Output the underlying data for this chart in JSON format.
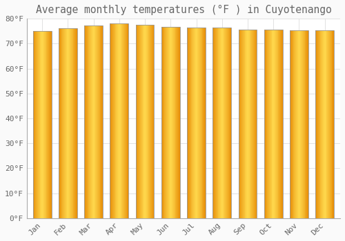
{
  "title": "Average monthly temperatures (°F ) in Cuyotenango",
  "months": [
    "Jan",
    "Feb",
    "Mar",
    "Apr",
    "May",
    "Jun",
    "Jul",
    "Aug",
    "Sep",
    "Oct",
    "Nov",
    "Dec"
  ],
  "values": [
    75.2,
    76.3,
    77.2,
    78.1,
    77.7,
    76.8,
    76.5,
    76.6,
    75.7,
    75.6,
    75.5,
    75.5
  ],
  "bar_color_center": "#FFD84D",
  "bar_color_edge": "#E8900A",
  "bar_border_color": "#999999",
  "background_color": "#FAFAFA",
  "plot_bg_color": "#FFFFFF",
  "grid_color": "#DDDDDD",
  "text_color": "#666666",
  "title_fontsize": 10.5,
  "tick_fontsize": 8,
  "ylim": [
    0,
    80
  ],
  "yticks": [
    0,
    10,
    20,
    30,
    40,
    50,
    60,
    70,
    80
  ],
  "ytick_labels": [
    "0°F",
    "10°F",
    "20°F",
    "30°F",
    "40°F",
    "50°F",
    "60°F",
    "70°F",
    "80°F"
  ]
}
